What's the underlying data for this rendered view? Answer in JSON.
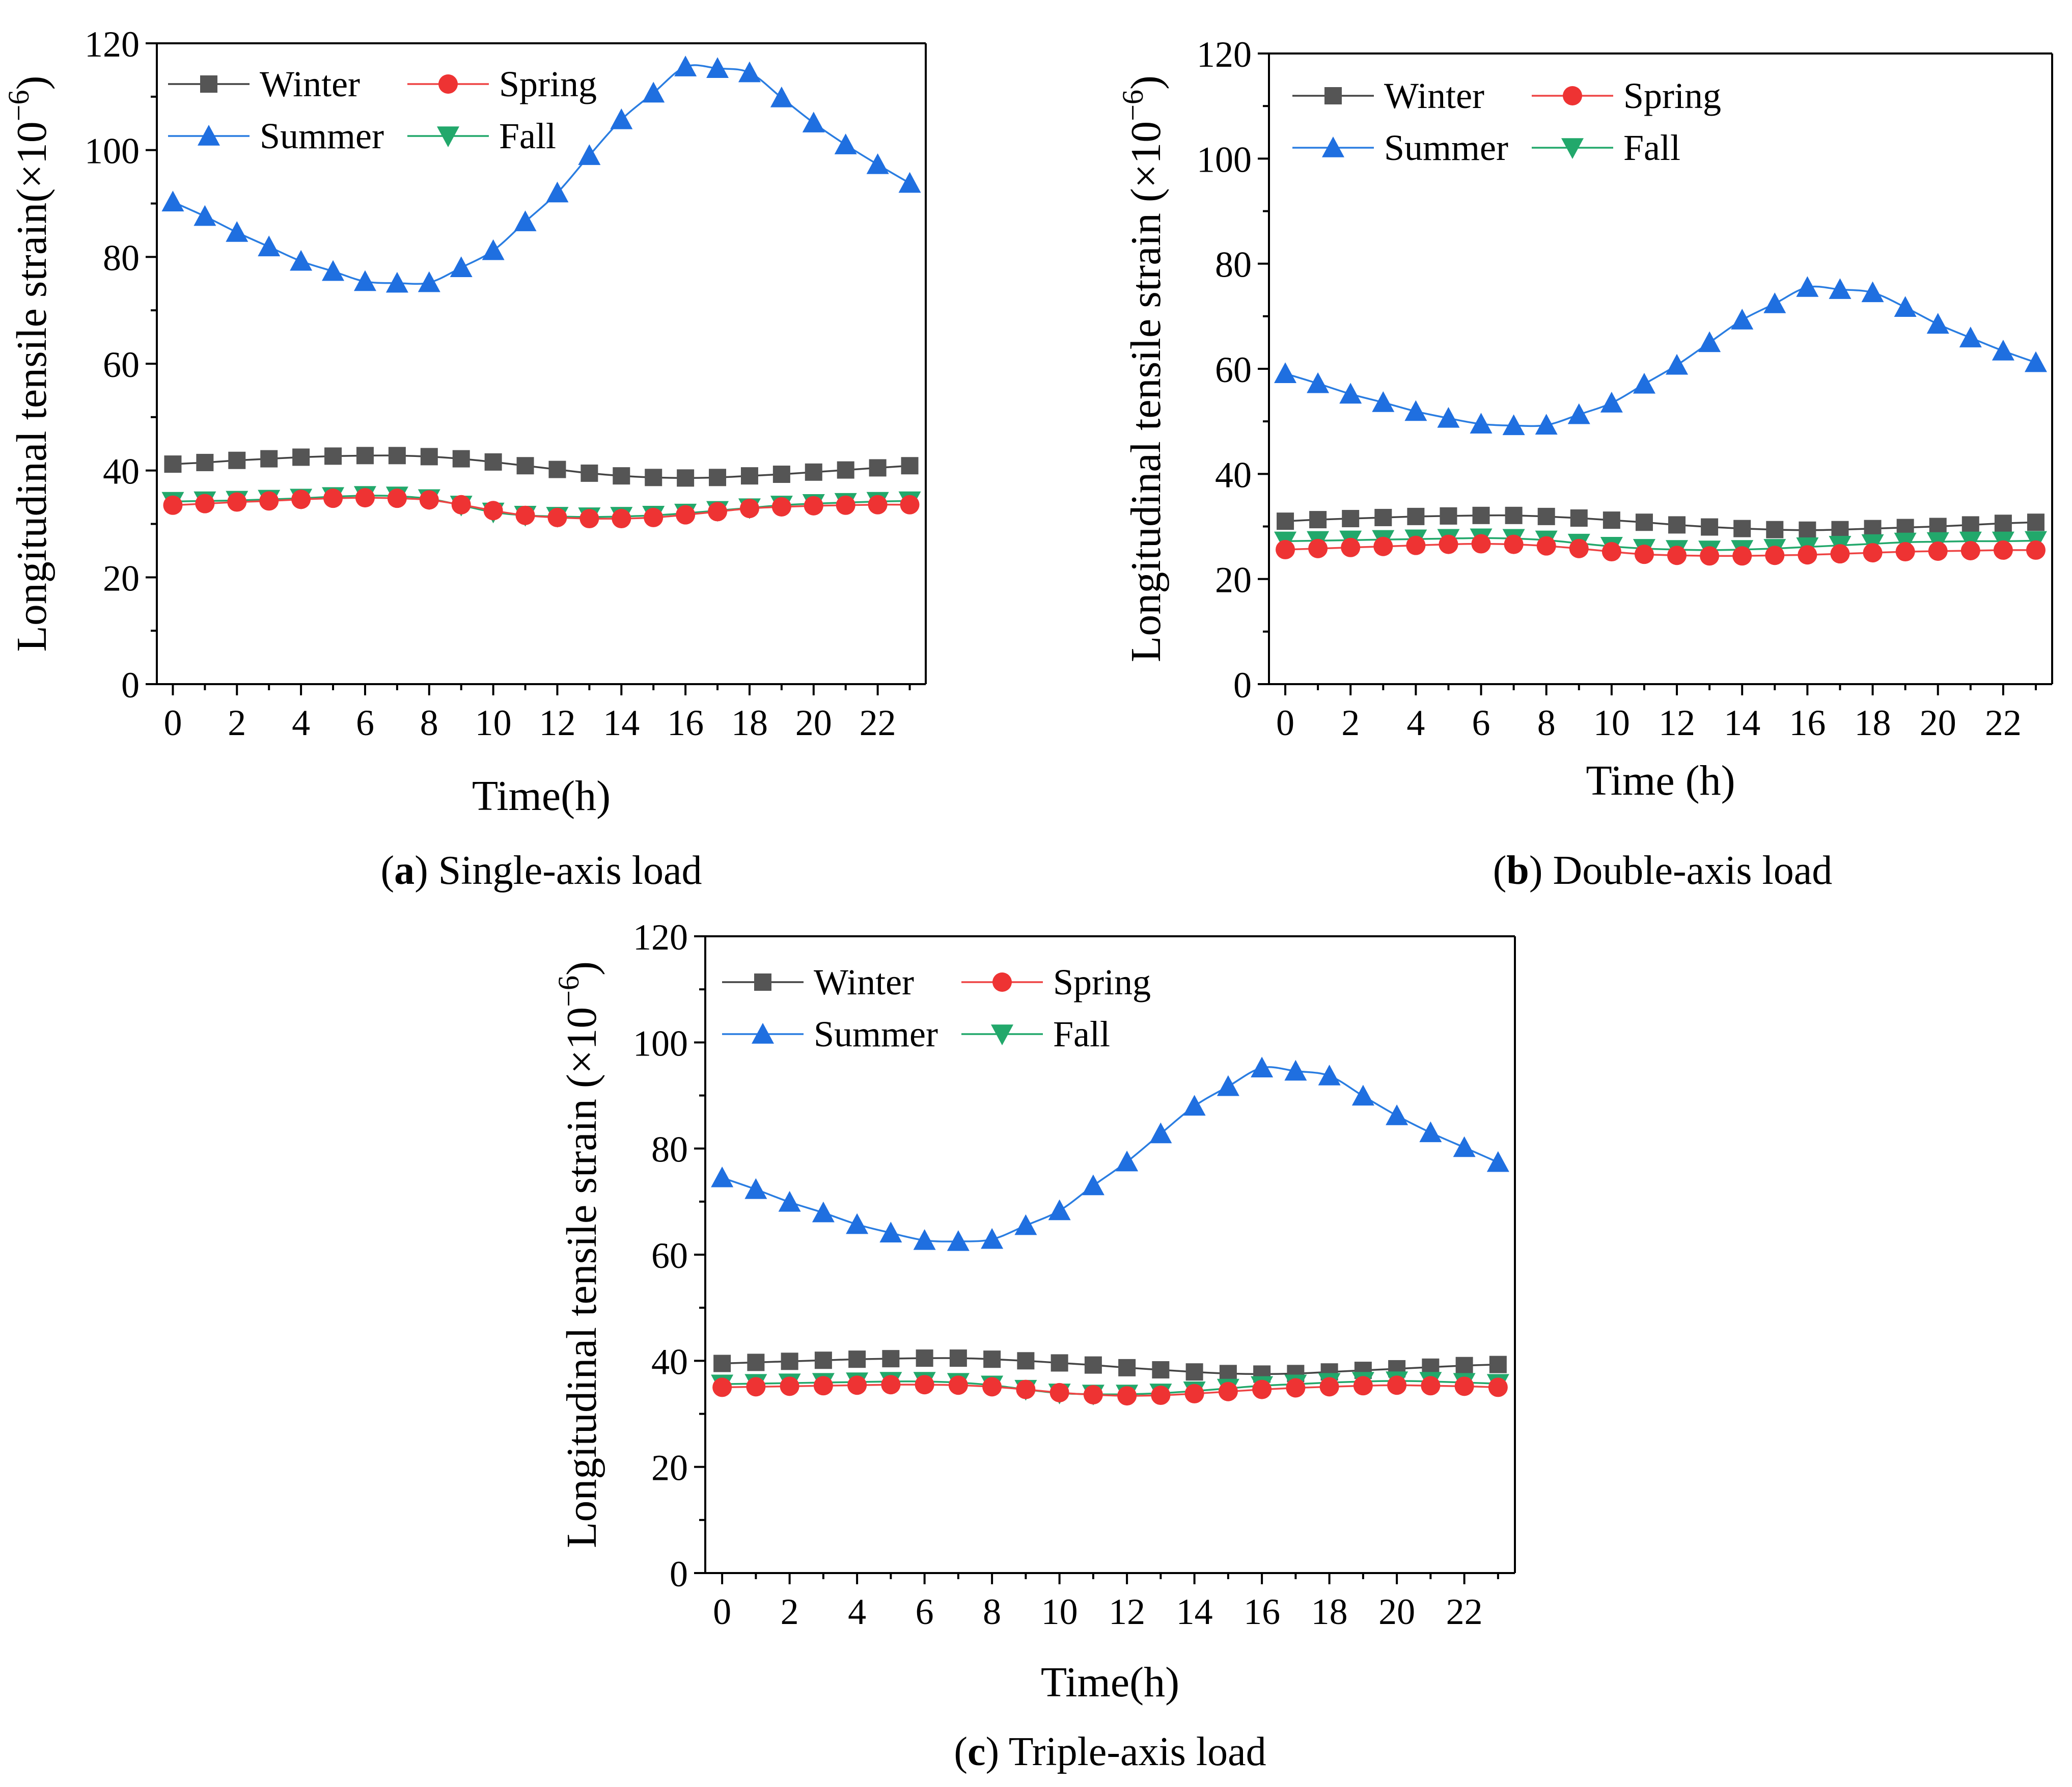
{
  "colors": {
    "Winter": "#555555",
    "Spring": "#ee3333",
    "Summer": "#1f6fe0",
    "Fall": "#22a86b",
    "Summer_line": "#2a7de1",
    "Winter_line": "#444444",
    "Spring_line": "#ee4444",
    "Fall_line": "#22a86b"
  },
  "marker_shapes": {
    "Winter": "square",
    "Spring": "circle",
    "Summer": "triangle-up",
    "Fall": "triangle-down"
  },
  "chart_data": [
    {
      "id": "a",
      "type": "line",
      "caption_letter": "a",
      "caption_text": " Single-axis load",
      "caption_open": "(",
      "caption_close": ")",
      "xlabel": "Time(h)",
      "ylabel": "Longitudinal tensile strain(×10",
      "ylabel_exp": "−6",
      "ylabel_close": ")",
      "xlim": [
        -0.5,
        23.5
      ],
      "ylim": [
        0,
        120
      ],
      "xticks": [
        0,
        2,
        4,
        6,
        8,
        10,
        12,
        14,
        16,
        18,
        20,
        22
      ],
      "yticks": [
        0,
        20,
        40,
        60,
        80,
        100,
        120
      ],
      "legend": [
        "Winter",
        "Spring",
        "Summer",
        "Fall"
      ],
      "x": [
        0,
        1,
        2,
        3,
        4,
        5,
        6,
        7,
        8,
        9,
        10,
        11,
        12,
        13,
        14,
        15,
        16,
        17,
        18,
        19,
        20,
        21,
        22,
        23
      ],
      "series": [
        {
          "name": "Winter",
          "values": [
            41.2,
            41.5,
            41.9,
            42.2,
            42.5,
            42.7,
            42.8,
            42.8,
            42.6,
            42.2,
            41.6,
            40.9,
            40.2,
            39.5,
            39.0,
            38.7,
            38.6,
            38.7,
            39.0,
            39.3,
            39.7,
            40.1,
            40.5,
            40.9
          ]
        },
        {
          "name": "Spring",
          "values": [
            33.5,
            33.8,
            34.1,
            34.3,
            34.6,
            34.8,
            34.9,
            34.8,
            34.5,
            33.6,
            32.5,
            31.6,
            31.2,
            31.0,
            31.0,
            31.2,
            31.7,
            32.3,
            32.9,
            33.2,
            33.4,
            33.5,
            33.6,
            33.6
          ]
        },
        {
          "name": "Summer",
          "values": [
            90.3,
            87.6,
            84.6,
            81.9,
            79.2,
            77.3,
            75.4,
            75.1,
            75.2,
            78.0,
            81.2,
            86.6,
            92.0,
            99.0,
            105.7,
            110.7,
            115.6,
            115.3,
            114.5,
            109.8,
            105.1,
            101.0,
            97.3,
            93.8
          ]
        },
        {
          "name": "Fall",
          "values": [
            34.2,
            34.3,
            34.4,
            34.6,
            34.8,
            35.1,
            35.3,
            35.2,
            34.7,
            33.5,
            32.2,
            31.6,
            31.4,
            31.3,
            31.4,
            31.6,
            32.0,
            32.5,
            33.0,
            33.5,
            33.8,
            34.0,
            34.2,
            34.3
          ]
        }
      ]
    },
    {
      "id": "b",
      "type": "line",
      "caption_letter": "b",
      "caption_text": " Double-axis load",
      "caption_open": "(",
      "caption_close": ")",
      "xlabel": "Time (h)",
      "ylabel": "Longitudinal tensile strain (×10",
      "ylabel_exp": "−6",
      "ylabel_close": ")",
      "xlim": [
        -0.5,
        23.5
      ],
      "ylim": [
        0,
        120
      ],
      "xticks": [
        0,
        2,
        4,
        6,
        8,
        10,
        12,
        14,
        16,
        18,
        20,
        22
      ],
      "yticks": [
        0,
        20,
        40,
        60,
        80,
        100,
        120
      ],
      "legend": [
        "Winter",
        "Spring",
        "Summer",
        "Fall"
      ],
      "x": [
        0,
        1,
        2,
        3,
        4,
        5,
        6,
        7,
        8,
        9,
        10,
        11,
        12,
        13,
        14,
        15,
        16,
        17,
        18,
        19,
        20,
        21,
        22,
        23
      ],
      "series": [
        {
          "name": "Winter",
          "values": [
            31.0,
            31.3,
            31.5,
            31.7,
            31.9,
            32.0,
            32.1,
            32.1,
            31.9,
            31.6,
            31.2,
            30.8,
            30.3,
            29.9,
            29.6,
            29.4,
            29.3,
            29.4,
            29.6,
            29.8,
            30.0,
            30.3,
            30.6,
            30.8
          ]
        },
        {
          "name": "Spring",
          "values": [
            25.6,
            25.8,
            26.0,
            26.2,
            26.4,
            26.6,
            26.7,
            26.6,
            26.3,
            25.8,
            25.2,
            24.7,
            24.5,
            24.4,
            24.4,
            24.5,
            24.6,
            24.8,
            25.0,
            25.2,
            25.3,
            25.4,
            25.5,
            25.5
          ]
        },
        {
          "name": "Summer",
          "values": [
            59.1,
            57.2,
            55.2,
            53.6,
            51.9,
            50.6,
            49.5,
            49.2,
            49.3,
            51.3,
            53.5,
            57.1,
            60.7,
            65.0,
            69.3,
            72.4,
            75.5,
            75.1,
            74.5,
            71.7,
            68.5,
            65.9,
            63.4,
            61.2
          ]
        },
        {
          "name": "Fall",
          "values": [
            27.2,
            27.3,
            27.4,
            27.5,
            27.6,
            27.7,
            27.8,
            27.7,
            27.4,
            26.8,
            26.2,
            25.8,
            25.6,
            25.5,
            25.6,
            25.8,
            26.1,
            26.4,
            26.7,
            27.0,
            27.1,
            27.2,
            27.2,
            27.3
          ]
        }
      ]
    },
    {
      "id": "c",
      "type": "line",
      "caption_letter": "c",
      "caption_text": " Triple-axis load",
      "caption_open": "(",
      "caption_close": ")",
      "xlabel": "Time(h)",
      "ylabel": "Longitudinal tensile strain (×10",
      "ylabel_exp": "−6",
      "ylabel_close": ")",
      "xlim": [
        -0.5,
        23.5
      ],
      "ylim": [
        0,
        120
      ],
      "xticks": [
        0,
        2,
        4,
        6,
        8,
        10,
        12,
        14,
        16,
        18,
        20,
        22
      ],
      "yticks": [
        0,
        20,
        40,
        60,
        80,
        100,
        120
      ],
      "legend": [
        "Winter",
        "Spring",
        "Summer",
        "Fall"
      ],
      "x": [
        0,
        1,
        2,
        3,
        4,
        5,
        6,
        7,
        8,
        9,
        10,
        11,
        12,
        13,
        14,
        15,
        16,
        17,
        18,
        19,
        20,
        21,
        22,
        23
      ],
      "series": [
        {
          "name": "Winter",
          "values": [
            39.5,
            39.7,
            39.9,
            40.1,
            40.3,
            40.4,
            40.5,
            40.5,
            40.3,
            40.0,
            39.6,
            39.2,
            38.7,
            38.3,
            37.9,
            37.6,
            37.5,
            37.6,
            37.9,
            38.2,
            38.5,
            38.8,
            39.1,
            39.3
          ]
        },
        {
          "name": "Spring",
          "values": [
            35.0,
            35.1,
            35.2,
            35.3,
            35.4,
            35.5,
            35.5,
            35.4,
            35.1,
            34.6,
            34.0,
            33.6,
            33.4,
            33.5,
            33.8,
            34.2,
            34.6,
            34.9,
            35.1,
            35.3,
            35.4,
            35.3,
            35.2,
            35.0
          ]
        },
        {
          "name": "Summer",
          "values": [
            74.5,
            72.3,
            69.9,
            67.9,
            65.7,
            64.1,
            62.7,
            62.5,
            62.9,
            65.5,
            68.3,
            73.0,
            77.5,
            82.8,
            88.0,
            91.7,
            95.2,
            94.6,
            93.7,
            89.9,
            86.2,
            83.0,
            80.2,
            77.4
          ]
        },
        {
          "name": "Fall",
          "values": [
            35.6,
            35.7,
            35.8,
            35.9,
            36.0,
            36.1,
            36.1,
            35.9,
            35.4,
            34.6,
            33.9,
            33.7,
            33.7,
            33.9,
            34.3,
            34.8,
            35.3,
            35.6,
            35.9,
            36.1,
            36.2,
            36.1,
            35.9,
            35.7
          ]
        }
      ]
    }
  ]
}
